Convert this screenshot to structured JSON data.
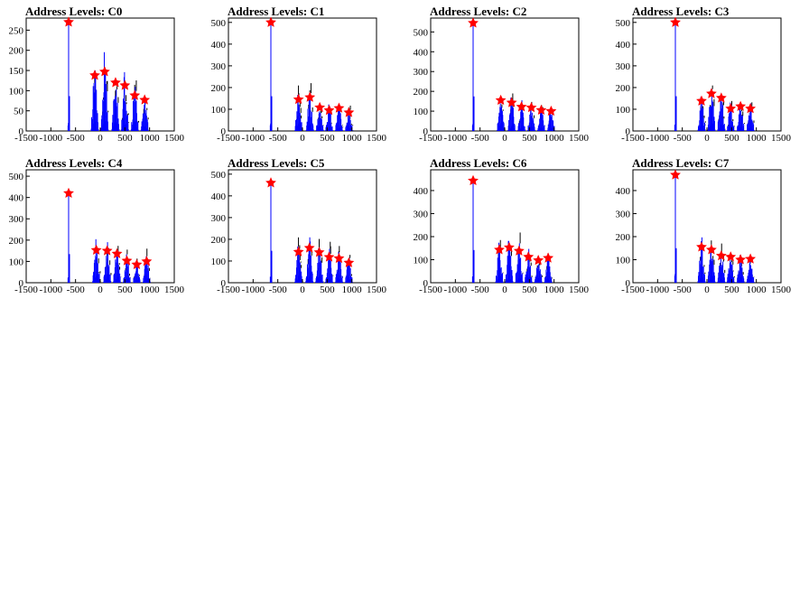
{
  "colors": {
    "signal": "#0000ff",
    "envelope": "#000000",
    "marker": "#ff0000",
    "axis": "#000000"
  },
  "chart_data": [
    {
      "type": "histogram",
      "title": "Address Levels: C0",
      "xlim": [
        -1500,
        1500
      ],
      "ylim": [
        0,
        280
      ],
      "xticks": [
        -1500,
        -1000,
        -500,
        0,
        500,
        1000,
        1500
      ],
      "yticks": [
        0,
        50,
        100,
        150,
        200,
        250
      ],
      "peaks": [
        {
          "x": -640,
          "y": 270
        },
        {
          "x": -110,
          "y": 138
        },
        {
          "x": 90,
          "y": 147
        },
        {
          "x": 310,
          "y": 120
        },
        {
          "x": 500,
          "y": 113
        },
        {
          "x": 700,
          "y": 88
        },
        {
          "x": 900,
          "y": 77
        }
      ]
    },
    {
      "type": "histogram",
      "title": "Address Levels: C1",
      "xlim": [
        -1500,
        1500
      ],
      "ylim": [
        0,
        520
      ],
      "xticks": [
        -1500,
        -1000,
        -500,
        0,
        500,
        1000,
        1500
      ],
      "yticks": [
        0,
        100,
        200,
        300,
        400,
        500
      ],
      "peaks": [
        {
          "x": -640,
          "y": 500
        },
        {
          "x": -80,
          "y": 145
        },
        {
          "x": 150,
          "y": 155
        },
        {
          "x": 350,
          "y": 108
        },
        {
          "x": 540,
          "y": 95
        },
        {
          "x": 740,
          "y": 105
        },
        {
          "x": 940,
          "y": 85
        }
      ]
    },
    {
      "type": "histogram",
      "title": "Address Levels: C2",
      "xlim": [
        -1500,
        1500
      ],
      "ylim": [
        0,
        570
      ],
      "xticks": [
        -1500,
        -1000,
        -500,
        0,
        500,
        1000,
        1500
      ],
      "yticks": [
        0,
        100,
        200,
        300,
        400,
        500
      ],
      "peaks": [
        {
          "x": -640,
          "y": 545
        },
        {
          "x": -80,
          "y": 155
        },
        {
          "x": 140,
          "y": 143
        },
        {
          "x": 340,
          "y": 122
        },
        {
          "x": 540,
          "y": 118
        },
        {
          "x": 740,
          "y": 105
        },
        {
          "x": 940,
          "y": 100
        }
      ]
    },
    {
      "type": "histogram",
      "title": "Address Levels: C3",
      "xlim": [
        -1500,
        1500
      ],
      "ylim": [
        0,
        520
      ],
      "xticks": [
        -1500,
        -1000,
        -500,
        0,
        500,
        1000,
        1500
      ],
      "yticks": [
        0,
        100,
        200,
        300,
        400,
        500
      ],
      "peaks": [
        {
          "x": -640,
          "y": 500
        },
        {
          "x": -110,
          "y": 138
        },
        {
          "x": 90,
          "y": 172
        },
        {
          "x": 290,
          "y": 152
        },
        {
          "x": 480,
          "y": 103
        },
        {
          "x": 680,
          "y": 113
        },
        {
          "x": 880,
          "y": 103
        }
      ]
    },
    {
      "type": "histogram",
      "title": "Address Levels: C4",
      "xlim": [
        -1500,
        1500
      ],
      "ylim": [
        0,
        530
      ],
      "xticks": [
        -1500,
        -1000,
        -500,
        0,
        500,
        1000,
        1500
      ],
      "yticks": [
        0,
        100,
        200,
        300,
        400,
        500
      ],
      "peaks": [
        {
          "x": -640,
          "y": 420
        },
        {
          "x": -80,
          "y": 153
        },
        {
          "x": 140,
          "y": 150
        },
        {
          "x": 340,
          "y": 136
        },
        {
          "x": 540,
          "y": 103
        },
        {
          "x": 740,
          "y": 85
        },
        {
          "x": 940,
          "y": 100
        }
      ]
    },
    {
      "type": "histogram",
      "title": "Address Levels: C5",
      "xlim": [
        -1500,
        1500
      ],
      "ylim": [
        0,
        520
      ],
      "xticks": [
        -1500,
        -1000,
        -500,
        0,
        500,
        1000,
        1500
      ],
      "yticks": [
        0,
        100,
        200,
        300,
        400,
        500
      ],
      "peaks": [
        {
          "x": -640,
          "y": 460
        },
        {
          "x": -80,
          "y": 142
        },
        {
          "x": 140,
          "y": 160
        },
        {
          "x": 340,
          "y": 140
        },
        {
          "x": 540,
          "y": 118
        },
        {
          "x": 740,
          "y": 112
        },
        {
          "x": 940,
          "y": 92
        }
      ]
    },
    {
      "type": "histogram",
      "title": "Address Levels: C6",
      "xlim": [
        -1500,
        1500
      ],
      "ylim": [
        0,
        490
      ],
      "xticks": [
        -1500,
        -1000,
        -500,
        0,
        500,
        1000,
        1500
      ],
      "yticks": [
        0,
        100,
        200,
        300,
        400
      ],
      "peaks": [
        {
          "x": -640,
          "y": 443
        },
        {
          "x": -110,
          "y": 143
        },
        {
          "x": 90,
          "y": 153
        },
        {
          "x": 290,
          "y": 138
        },
        {
          "x": 480,
          "y": 112
        },
        {
          "x": 680,
          "y": 97
        },
        {
          "x": 880,
          "y": 107
        }
      ]
    },
    {
      "type": "histogram",
      "title": "Address Levels: C7",
      "xlim": [
        -1500,
        1500
      ],
      "ylim": [
        0,
        490
      ],
      "xticks": [
        -1500,
        -1000,
        -500,
        0,
        500,
        1000,
        1500
      ],
      "yticks": [
        0,
        100,
        200,
        300,
        400
      ],
      "peaks": [
        {
          "x": -640,
          "y": 468
        },
        {
          "x": -110,
          "y": 155
        },
        {
          "x": 90,
          "y": 143
        },
        {
          "x": 290,
          "y": 117
        },
        {
          "x": 480,
          "y": 112
        },
        {
          "x": 680,
          "y": 100
        },
        {
          "x": 880,
          "y": 103
        }
      ]
    }
  ]
}
